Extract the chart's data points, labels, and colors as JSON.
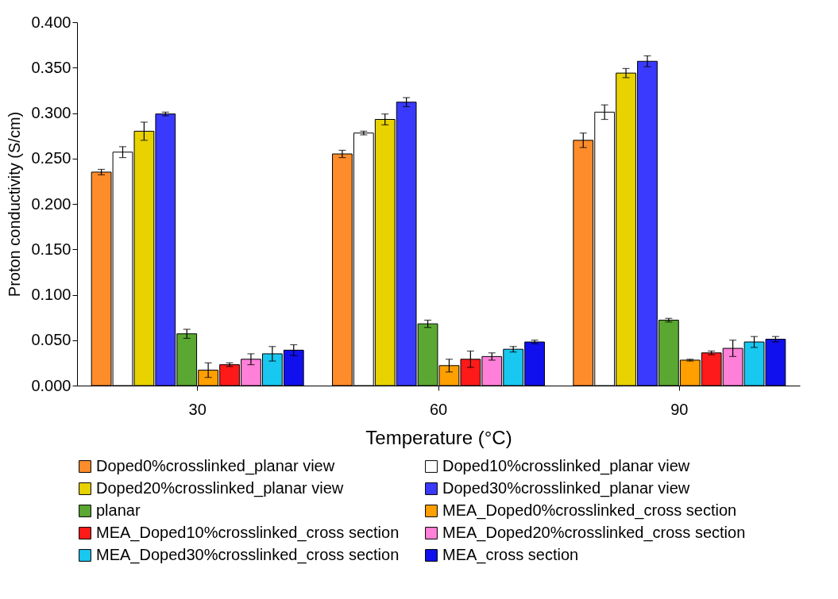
{
  "chart_data": {
    "type": "bar",
    "xlabel": "Temperature (°C)",
    "ylabel": "Proton conductivity (S/cm)",
    "categories": [
      "30",
      "60",
      "90"
    ],
    "ylim": [
      0,
      0.4
    ],
    "yticks": [
      {
        "value": 0,
        "label": "0.000"
      },
      {
        "value": 0.05,
        "label": "0.050"
      },
      {
        "value": 0.1,
        "label": "0.100"
      },
      {
        "value": 0.15,
        "label": "0.150"
      },
      {
        "value": 0.2,
        "label": "0.200"
      },
      {
        "value": 0.25,
        "label": "0.250"
      },
      {
        "value": 0.3,
        "label": "0.300"
      },
      {
        "value": 0.35,
        "label": "0.350"
      },
      {
        "value": 0.4,
        "label": "0.400"
      }
    ],
    "grid": false,
    "legend": "bottom",
    "series": [
      {
        "name": "Doped0%crosslinked_planar view",
        "color": "#ff8c2a",
        "values": [
          0.235,
          0.255,
          0.27
        ],
        "errors": [
          0.003,
          0.004,
          0.008
        ]
      },
      {
        "name": "Doped10%crosslinked_planar view",
        "color": "#ffffff",
        "values": [
          0.257,
          0.278,
          0.301
        ],
        "errors": [
          0.006,
          0.002,
          0.008
        ]
      },
      {
        "name": "Doped20%crosslinked_planar view",
        "color": "#e8d200",
        "values": [
          0.28,
          0.293,
          0.344
        ],
        "errors": [
          0.01,
          0.006,
          0.005
        ]
      },
      {
        "name": "Doped30%crosslinked_planar view",
        "color": "#3a3aff",
        "values": [
          0.299,
          0.312,
          0.357
        ],
        "errors": [
          0.002,
          0.005,
          0.006
        ]
      },
      {
        "name": "planar",
        "color": "#5aa832",
        "values": [
          0.057,
          0.068,
          0.072
        ],
        "errors": [
          0.005,
          0.004,
          0.002
        ]
      },
      {
        "name": "MEA_Doped0%crosslinked_cross section",
        "color": "#ffa000",
        "values": [
          0.017,
          0.022,
          0.028
        ],
        "errors": [
          0.008,
          0.007,
          0.001
        ]
      },
      {
        "name": "MEA_Doped10%crosslinked_cross section",
        "color": "#ff1a1a",
        "values": [
          0.023,
          0.029,
          0.036
        ],
        "errors": [
          0.002,
          0.009,
          0.002
        ]
      },
      {
        "name": "MEA_Doped20%crosslinked_cross section",
        "color": "#ff80d8",
        "values": [
          0.029,
          0.032,
          0.041
        ],
        "errors": [
          0.006,
          0.004,
          0.009
        ]
      },
      {
        "name": "MEA_Doped30%crosslinked_cross section",
        "color": "#19c8f0",
        "values": [
          0.035,
          0.04,
          0.048
        ],
        "errors": [
          0.008,
          0.003,
          0.006
        ]
      },
      {
        "name": "MEA_cross section",
        "color": "#1010ee",
        "values": [
          0.039,
          0.048,
          0.051
        ],
        "errors": [
          0.006,
          0.002,
          0.003
        ]
      }
    ]
  }
}
